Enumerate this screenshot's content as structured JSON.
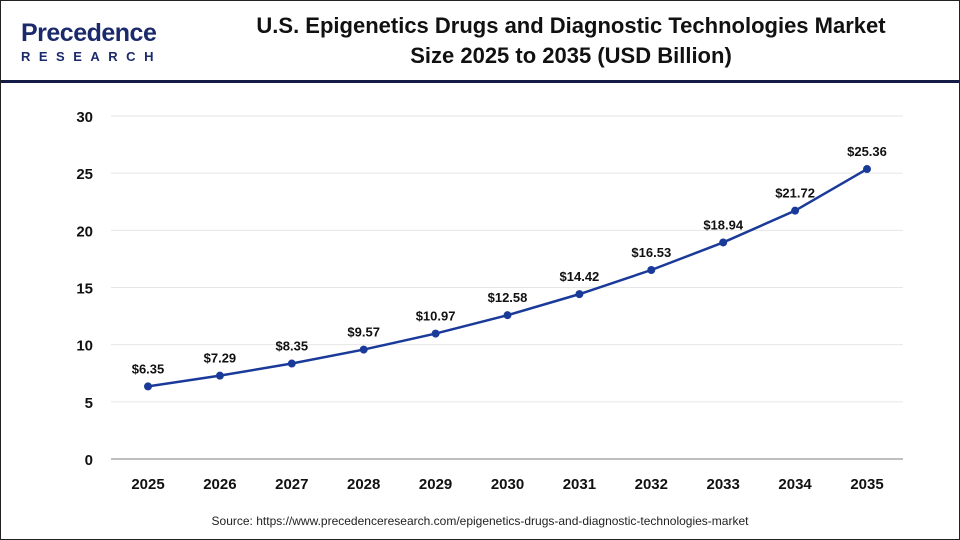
{
  "brand": {
    "line1": "Precedence",
    "line2": "RESEARCH"
  },
  "title_line1": "U.S. Epigenetics Drugs and Diagnostic Technologies Market",
  "title_line2": "Size 2025 to 2035 (USD Billion)",
  "source": "Source: https://www.precedenceresearch.com/epigenetics-drugs-and-diagnostic-technologies-market",
  "colors": {
    "line": "#1a3a9a",
    "grid": "#e6e6e6",
    "axis": "#bfbfbf",
    "header_rule": "#141c46"
  },
  "chart_data": {
    "type": "line",
    "title": "U.S. Epigenetics Drugs and Diagnostic Technologies Market Size 2025 to 2035 (USD Billion)",
    "categories": [
      "2025",
      "2026",
      "2027",
      "2028",
      "2029",
      "2030",
      "2031",
      "2032",
      "2033",
      "2034",
      "2035"
    ],
    "values": [
      6.35,
      7.29,
      8.35,
      9.57,
      10.97,
      12.58,
      14.42,
      16.53,
      18.94,
      21.72,
      25.36
    ],
    "data_labels": [
      "$6.35",
      "$7.29",
      "$8.35",
      "$9.57",
      "$10.97",
      "$12.58",
      "$14.42",
      "$16.53",
      "$18.94",
      "$21.72",
      "$25.36"
    ],
    "yticks": [
      "0",
      "5",
      "10",
      "15",
      "20",
      "25",
      "30"
    ],
    "ylim": [
      0,
      30
    ],
    "grid": true,
    "xlabel": "",
    "ylabel": ""
  }
}
